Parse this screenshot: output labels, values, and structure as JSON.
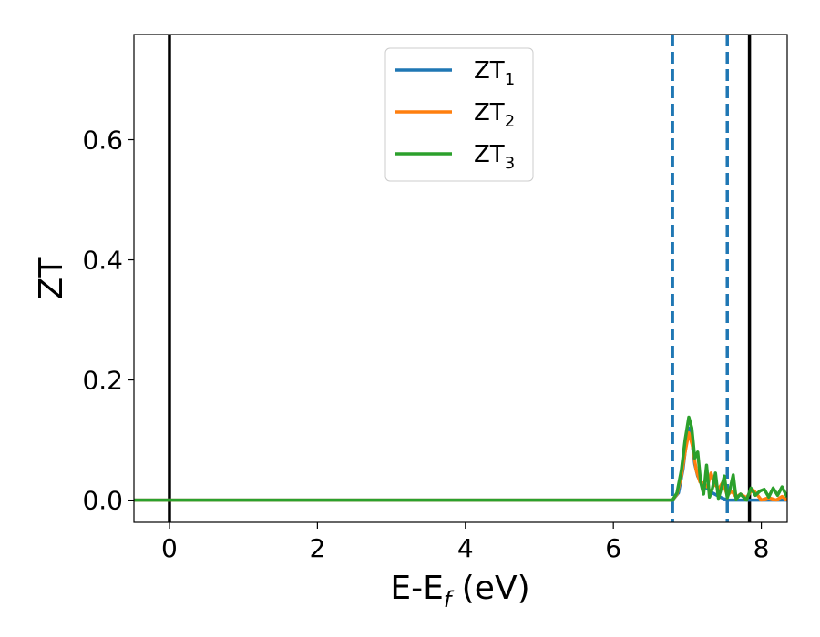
{
  "chart_data": {
    "type": "line",
    "xlabel": {
      "main": "E-E",
      "sub": "f",
      "suffix": " (eV)"
    },
    "ylabel": "ZT",
    "xlim": [
      -0.48,
      8.35
    ],
    "ylim": [
      -0.037,
      0.775
    ],
    "xticks": [
      0,
      2,
      4,
      6,
      8
    ],
    "xtick_labels": [
      "0",
      "2",
      "4",
      "6",
      "8"
    ],
    "yticks": [
      0.0,
      0.2,
      0.4,
      0.6
    ],
    "ytick_labels": [
      "0.0",
      "0.2",
      "0.4",
      "0.6"
    ],
    "grid": false,
    "legend_position": "upper-center",
    "vertical_lines": [
      {
        "x": 0.0,
        "style": "solid",
        "color": "#000000"
      },
      {
        "x": 7.84,
        "style": "solid",
        "color": "#000000"
      },
      {
        "x": 6.8,
        "style": "dashed",
        "color": "#1f77b4"
      },
      {
        "x": 7.54,
        "style": "dashed",
        "color": "#1f77b4"
      }
    ],
    "series": [
      {
        "name": {
          "main": "ZT",
          "sub": "1"
        },
        "color": "#1f77b4",
        "points": [
          [
            -0.48,
            0
          ],
          [
            6.8,
            0
          ],
          [
            6.88,
            0.012
          ],
          [
            6.94,
            0.05
          ],
          [
            6.98,
            0.09
          ],
          [
            7.02,
            0.12
          ],
          [
            7.06,
            0.1
          ],
          [
            7.1,
            0.06
          ],
          [
            7.14,
            0.04
          ],
          [
            7.18,
            0.03
          ],
          [
            7.22,
            0.025
          ],
          [
            7.28,
            0.018
          ],
          [
            7.34,
            0.012
          ],
          [
            7.4,
            0.008
          ],
          [
            7.46,
            0.004
          ],
          [
            7.54,
            0.0
          ],
          [
            8.35,
            0.0
          ]
        ]
      },
      {
        "name": {
          "main": "ZT",
          "sub": "2"
        },
        "color": "#ff7f0e",
        "points": [
          [
            -0.48,
            0
          ],
          [
            6.8,
            0
          ],
          [
            6.86,
            0.01
          ],
          [
            6.92,
            0.04
          ],
          [
            6.97,
            0.08
          ],
          [
            7.02,
            0.112
          ],
          [
            7.07,
            0.09
          ],
          [
            7.12,
            0.05
          ],
          [
            7.17,
            0.03
          ],
          [
            7.22,
            0.028
          ],
          [
            7.27,
            0.022
          ],
          [
            7.32,
            0.045
          ],
          [
            7.37,
            0.025
          ],
          [
            7.43,
            0.02
          ],
          [
            7.48,
            0.03
          ],
          [
            7.54,
            0.008
          ],
          [
            7.6,
            0.015
          ],
          [
            7.66,
            0.005
          ],
          [
            7.72,
            0.01
          ],
          [
            7.8,
            0.004
          ],
          [
            7.88,
            0.018
          ],
          [
            7.94,
            0.01
          ],
          [
            8.0,
            0.0
          ],
          [
            8.1,
            0.004
          ],
          [
            8.2,
            0.0
          ],
          [
            8.28,
            0.006
          ],
          [
            8.35,
            0.0
          ]
        ]
      },
      {
        "name": {
          "main": "ZT",
          "sub": "3"
        },
        "color": "#2ca02c",
        "points": [
          [
            -0.48,
            0
          ],
          [
            6.8,
            0
          ],
          [
            6.86,
            0.012
          ],
          [
            6.92,
            0.05
          ],
          [
            6.97,
            0.1
          ],
          [
            7.02,
            0.138
          ],
          [
            7.06,
            0.12
          ],
          [
            7.1,
            0.07
          ],
          [
            7.14,
            0.08
          ],
          [
            7.18,
            0.03
          ],
          [
            7.22,
            0.01
          ],
          [
            7.26,
            0.058
          ],
          [
            7.3,
            0.005
          ],
          [
            7.34,
            0.02
          ],
          [
            7.38,
            0.045
          ],
          [
            7.42,
            0.003
          ],
          [
            7.46,
            0.02
          ],
          [
            7.5,
            0.04
          ],
          [
            7.54,
            0.004
          ],
          [
            7.58,
            0.02
          ],
          [
            7.62,
            0.042
          ],
          [
            7.66,
            0.002
          ],
          [
            7.72,
            0.01
          ],
          [
            7.8,
            0.0
          ],
          [
            7.86,
            0.02
          ],
          [
            7.92,
            0.008
          ],
          [
            7.98,
            0.015
          ],
          [
            8.04,
            0.018
          ],
          [
            8.1,
            0.005
          ],
          [
            8.16,
            0.02
          ],
          [
            8.22,
            0.008
          ],
          [
            8.28,
            0.022
          ],
          [
            8.35,
            0.005
          ]
        ]
      }
    ]
  }
}
